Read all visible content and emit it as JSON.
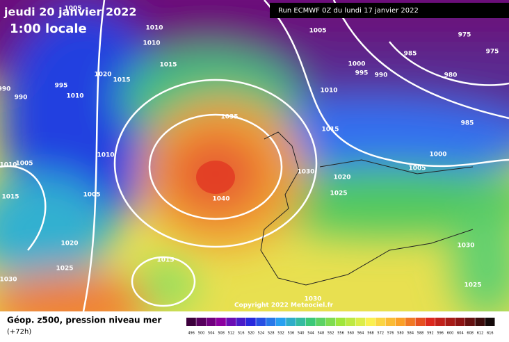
{
  "header": {
    "date": "jeudi 20 janvier 2022",
    "time": "1:00 locale",
    "run": "Run ECMWF 0Z du lundi 17 janvier 2022"
  },
  "isobar_labels": [
    "1005",
    "1010",
    "1010",
    "1015",
    "1020",
    "1015",
    "995",
    "1010",
    "990",
    "990",
    "1035",
    "1010",
    "1005",
    "1010",
    "1005",
    "1015",
    "1040",
    "1030",
    "1020",
    "1025",
    "1020",
    "1025",
    "1030",
    "1015",
    "1030",
    "1005",
    "975",
    "975",
    "985",
    "1000",
    "995",
    "990",
    "980",
    "1010",
    "985",
    "1015",
    "1000",
    "1005",
    "1030",
    "1025"
  ],
  "copyright": "Copyright 2022 Meteociel.fr",
  "footer": {
    "title": "Géop. z500, pression niveau mer",
    "lead": "(+72h)"
  },
  "scale": [
    "496",
    "500",
    "504",
    "508",
    "512",
    "516",
    "520",
    "524",
    "528",
    "532",
    "536",
    "540",
    "544",
    "548",
    "552",
    "556",
    "560",
    "564",
    "568",
    "572",
    "576",
    "580",
    "584",
    "588",
    "592",
    "596",
    "600",
    "604",
    "608",
    "612",
    "616"
  ]
}
